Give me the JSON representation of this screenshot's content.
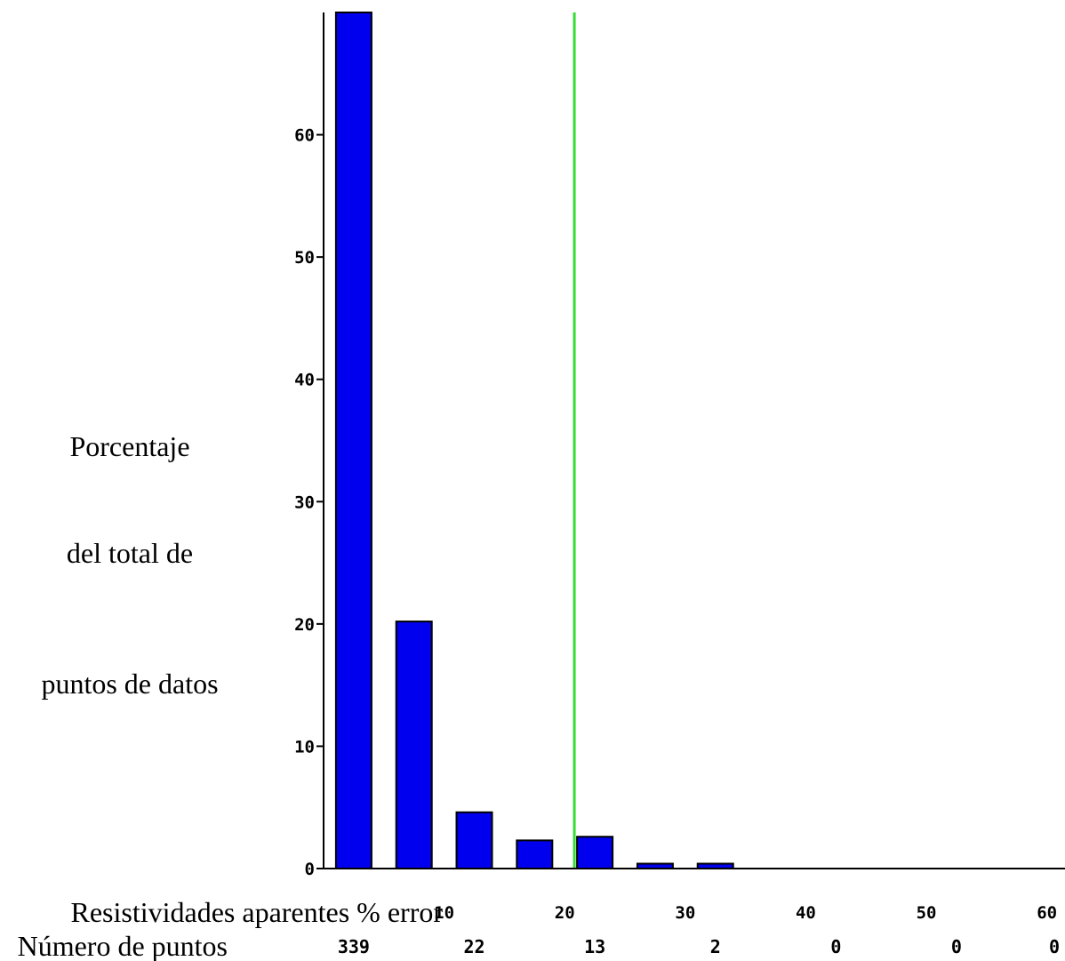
{
  "chart_data": {
    "type": "bar",
    "ylabel_lines": [
      "Porcentaje",
      "del total de",
      "puntos de datos"
    ],
    "xlabel": "Resistividades aparentes % error",
    "count_row_label": "Número de puntos",
    "y_ticks": [
      "0",
      "10",
      "20",
      "30",
      "40",
      "50",
      "60"
    ],
    "ylim": [
      0,
      70
    ],
    "xlim": [
      0,
      61.5
    ],
    "x_ticks": [
      {
        "value": 10,
        "label": "10"
      },
      {
        "value": 20,
        "label": "20"
      },
      {
        "value": 30,
        "label": "30"
      },
      {
        "value": 40,
        "label": "40"
      },
      {
        "value": 50,
        "label": "50"
      },
      {
        "value": 60,
        "label": "60"
      }
    ],
    "bars": [
      {
        "x": 2.5,
        "value": 70
      },
      {
        "x": 7.5,
        "value": 20.2
      },
      {
        "x": 12.5,
        "value": 4.6
      },
      {
        "x": 17.5,
        "value": 2.3
      },
      {
        "x": 22.5,
        "value": 2.6
      },
      {
        "x": 27.5,
        "value": 0.4
      },
      {
        "x": 32.5,
        "value": 0.4
      }
    ],
    "counts": [
      {
        "x": 2.5,
        "label": "339"
      },
      {
        "x": 12.5,
        "label": "22"
      },
      {
        "x": 22.5,
        "label": "13"
      },
      {
        "x": 32.5,
        "label": "2"
      },
      {
        "x": 42.5,
        "label": "0"
      },
      {
        "x": 52.5,
        "label": "0"
      },
      {
        "x": 62.5,
        "label": "0"
      }
    ],
    "reference_line_x": 20.8,
    "colors": {
      "bars": "#0000ee",
      "bar_outline": "#000000",
      "reference_line": "#33dd33",
      "axis": "#000000"
    }
  }
}
